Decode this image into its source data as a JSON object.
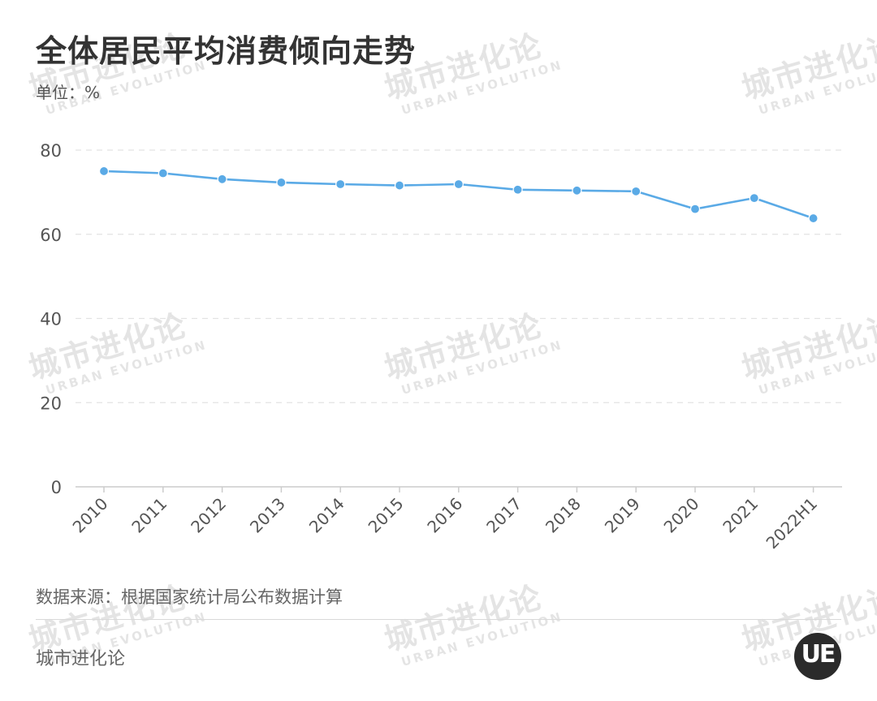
{
  "title": "全体居民平均消费倾向走势",
  "unit_label": "单位：%",
  "source": "数据来源：根据国家统计局公布数据计算",
  "brand": "城市进化论",
  "logo_text": "UE",
  "watermark": {
    "cn": "城市进化论",
    "en": "URBAN EVOLUTION"
  },
  "colors": {
    "line": "#5aaae6",
    "grid": "#e3e3e3",
    "axis": "#cccccc"
  },
  "chart_data": {
    "type": "line",
    "categories": [
      "2010",
      "2011",
      "2012",
      "2013",
      "2014",
      "2015",
      "2016",
      "2017",
      "2018",
      "2019",
      "2020",
      "2021",
      "2022H1"
    ],
    "series": [
      {
        "values": [
          75.0,
          74.5,
          73.1,
          72.3,
          71.9,
          71.6,
          71.9,
          70.6,
          70.4,
          70.2,
          66.0,
          68.6,
          63.8
        ]
      }
    ],
    "yticks": [
      0,
      20,
      40,
      60,
      80
    ],
    "ylim": [
      0,
      80
    ],
    "grid": true,
    "legend": "none"
  }
}
